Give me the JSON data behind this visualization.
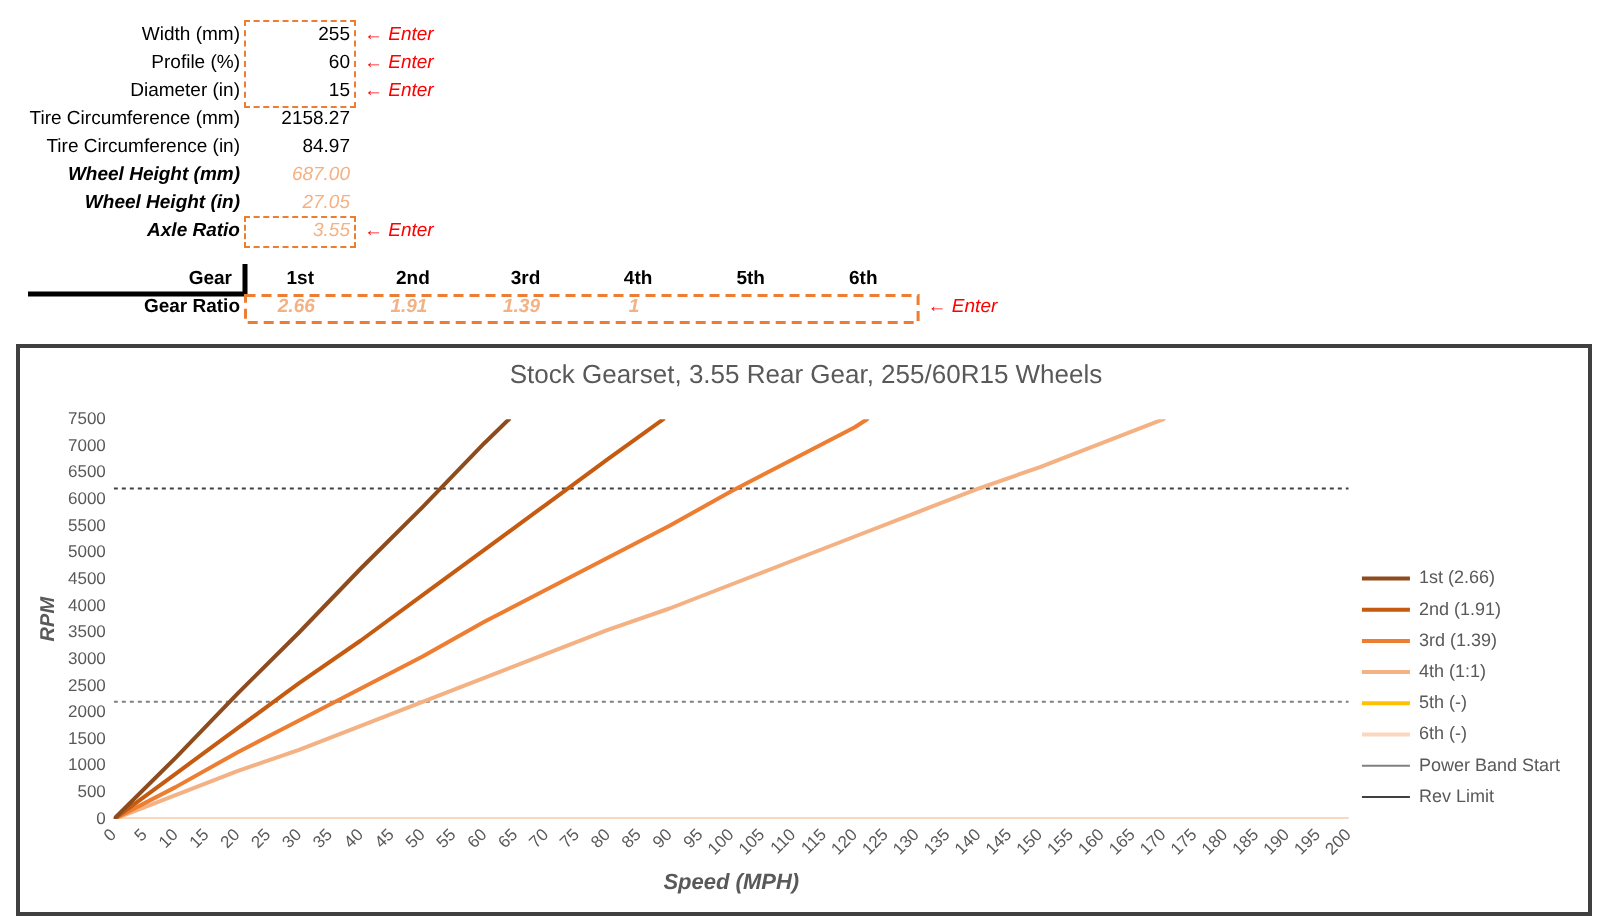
{
  "chart_data": [
    {
      "type": "other",
      "annotations": [
        "Width (mm)",
        "255",
        "← Enter",
        "Profile (%)",
        "60",
        "← Enter",
        "Diameter (in)",
        "15",
        "← Enter",
        "Tire Circumference (mm)",
        "2158.27",
        "Tire Circumference (in)",
        "84.97",
        "Wheel Height (mm)",
        "687.00",
        "Wheel Height (in)",
        "27.05",
        "Axle Ratio",
        "3.55",
        "← Enter"
      ]
    },
    {
      "type": "heatmap",
      "xlabel": "Gear",
      "categories": [
        "1st",
        "2nd",
        "3rd",
        "4th",
        "5th",
        "6th"
      ],
      "y_categories": [
        "Gear Ratio"
      ],
      "cells": [
        [
          2.66,
          1.91,
          1.39,
          1,
          null,
          null
        ]
      ],
      "data_labels": true,
      "annotations": [
        "← Enter"
      ]
    },
    {
      "type": "line",
      "title": "Stock Gearset, 3.55 Rear Gear, 255/60R15 Wheels",
      "xlabel": "Speed (MPH)",
      "ylabel": "RPM",
      "xlim": [
        0,
        200
      ],
      "xticks": [
        0,
        5,
        10,
        15,
        20,
        25,
        30,
        35,
        40,
        45,
        50,
        55,
        60,
        65,
        70,
        75,
        80,
        85,
        90,
        95,
        100,
        105,
        110,
        115,
        120,
        125,
        130,
        135,
        140,
        145,
        150,
        155,
        160,
        165,
        170,
        175,
        180,
        185,
        190,
        195,
        200
      ],
      "ylim": [
        0,
        7500
      ],
      "yticks": [
        0,
        500,
        1000,
        1500,
        2000,
        2500,
        3000,
        3500,
        4000,
        4500,
        5000,
        5500,
        6000,
        6500,
        7000,
        7500
      ],
      "grid": false,
      "legend": "right",
      "marker": "none",
      "series": [
        {
          "name": "1st (2.66)",
          "color": "#8e4b1c",
          "x": [
            0,
            10,
            20,
            30,
            40,
            50,
            60,
            64
          ],
          "values": [
            0,
            1150,
            2350,
            3500,
            4700,
            5850,
            7050,
            7500
          ]
        },
        {
          "name": "2nd (1.91)",
          "color": "#c55a11",
          "x": [
            0,
            10,
            20,
            30,
            40,
            50,
            60,
            70,
            80,
            89
          ],
          "values": [
            0,
            850,
            1700,
            2550,
            3350,
            4200,
            5050,
            5900,
            6750,
            7500
          ]
        },
        {
          "name": "3rd (1.39)",
          "color": "#ed7d31",
          "x": [
            0,
            10,
            20,
            30,
            40,
            50,
            60,
            70,
            80,
            90,
            100,
            110,
            120,
            122
          ],
          "values": [
            0,
            600,
            1250,
            1850,
            2450,
            3050,
            3700,
            4300,
            4900,
            5500,
            6150,
            6750,
            7350,
            7500
          ]
        },
        {
          "name": "4th (1:1)",
          "color": "#f4b183",
          "x": [
            0,
            10,
            20,
            30,
            40,
            50,
            60,
            70,
            80,
            90,
            100,
            110,
            120,
            130,
            140,
            150,
            160,
            170
          ],
          "values": [
            0,
            450,
            900,
            1300,
            1750,
            2200,
            2650,
            3100,
            3550,
            3950,
            4400,
            4850,
            5300,
            5750,
            6200,
            6600,
            7050,
            7500
          ]
        },
        {
          "name": "5th (-)",
          "color": "#ffc000"
        },
        {
          "name": "6th (-)",
          "color": "#fad7bd",
          "x": [
            0,
            200
          ],
          "values": [
            0,
            0
          ]
        }
      ],
      "ref_lines": [
        {
          "axis": "y",
          "value": 2200,
          "label": "Power Band Start",
          "color": "#808080",
          "line_style": "dotted"
        },
        {
          "axis": "y",
          "value": 6200,
          "label": "Rev Limit",
          "color": "#404040",
          "line_style": "dotted"
        }
      ]
    }
  ]
}
